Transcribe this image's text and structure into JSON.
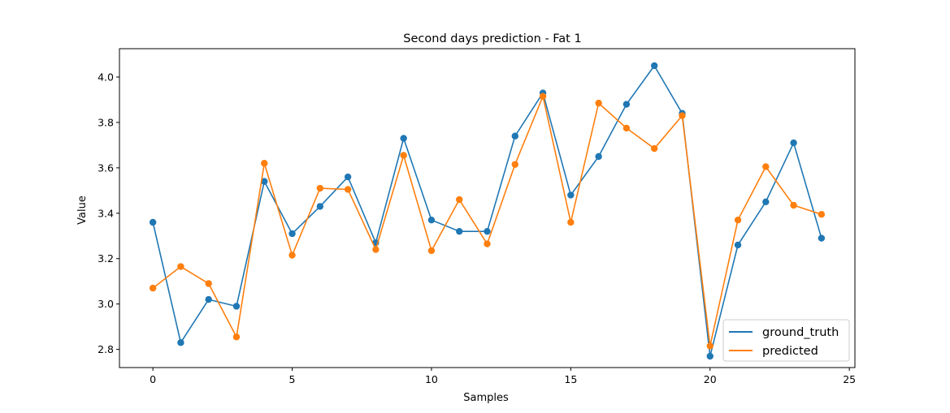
{
  "chart_data": {
    "type": "line",
    "title": "Second days prediction - Fat 1",
    "xlabel": "Samples",
    "ylabel": "Value",
    "xlim": [
      -1.2,
      25.2
    ],
    "ylim": [
      2.72,
      4.125
    ],
    "xticks": [
      0,
      5,
      10,
      15,
      20,
      25
    ],
    "yticks": [
      2.8,
      3.0,
      3.2,
      3.4,
      3.6,
      3.8,
      4.0
    ],
    "ytick_labels": [
      "2.8",
      "3.0",
      "3.2",
      "3.4",
      "3.6",
      "3.8",
      "4.0"
    ],
    "x": [
      0,
      1,
      2,
      3,
      4,
      5,
      6,
      7,
      8,
      9,
      10,
      11,
      12,
      13,
      14,
      15,
      16,
      17,
      18,
      19,
      20,
      21,
      22,
      23,
      24
    ],
    "series": [
      {
        "name": "ground_truth",
        "color": "#1f77b4",
        "marker": "circle",
        "values": [
          3.36,
          2.83,
          3.02,
          2.99,
          3.54,
          3.31,
          3.43,
          3.56,
          3.27,
          3.73,
          3.37,
          3.32,
          3.32,
          3.74,
          3.93,
          3.48,
          3.65,
          3.88,
          4.05,
          3.84,
          2.77,
          3.26,
          3.45,
          3.71,
          3.29
        ]
      },
      {
        "name": "predicted",
        "color": "#ff7f0e",
        "marker": "circle",
        "values": [
          3.07,
          3.165,
          3.09,
          2.855,
          3.62,
          3.215,
          3.51,
          3.505,
          3.24,
          3.655,
          3.235,
          3.46,
          3.265,
          3.615,
          3.915,
          3.36,
          3.885,
          3.775,
          3.685,
          3.83,
          2.815,
          3.37,
          3.605,
          3.435,
          3.395
        ]
      }
    ],
    "grid": false,
    "legend_position": "lower-right"
  }
}
